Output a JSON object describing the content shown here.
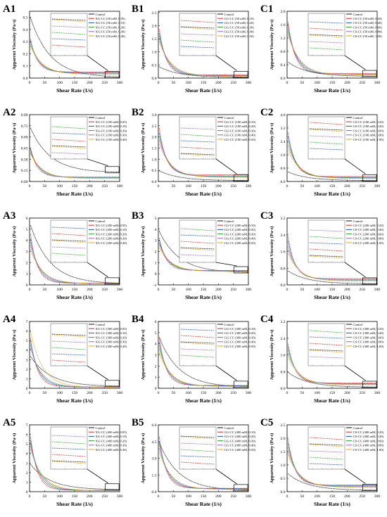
{
  "figure": {
    "xlabel": "Shear Rate (1/s)",
    "ylabel": "Apparent Viscosity (Pa·s)"
  },
  "colors": {
    "control": "#111111",
    "series": [
      "#d62728",
      "#1f4fc4",
      "#2ca02c",
      "#9467bd",
      "#e8a317",
      "#17becf"
    ],
    "box": "#000000"
  },
  "chart_data": [
    {
      "id": "A1",
      "type": "line",
      "xlabel": "Shear Rate (1/s)",
      "ylabel": "Apparent Viscosity (Pa·s)",
      "xlim": [
        0,
        300
      ],
      "xticks": [
        "0",
        "50",
        "100",
        "150",
        "200",
        "250",
        "300"
      ],
      "ylim": [
        0,
        0.55
      ],
      "yticks": [
        "0.0",
        "0.1",
        "0.2",
        "0.3",
        "0.4",
        "0.5"
      ],
      "legend": [
        "Control",
        "XG-CC (50 mM, 0.05)",
        "XG-CC (50 mM, 0.10)",
        "XG-CC (50 mM, 0.20)",
        "XG-CC (50 mM, 0.30)",
        "XG-CC (50 mM, 0.40)"
      ],
      "start": [
        0.52,
        0.36,
        0.34,
        0.32,
        0.3,
        0.28
      ],
      "end": [
        0.005,
        0.05,
        0.045,
        0.04,
        0.035,
        0.03
      ]
    },
    {
      "id": "B1",
      "type": "line",
      "xlabel": "Shear Rate (1/s)",
      "ylabel": "Apparent Viscosity (Pa·s)",
      "xlim": [
        0,
        300
      ],
      "xticks": [
        "0",
        "50",
        "100",
        "150",
        "200",
        "250",
        "300"
      ],
      "ylim": [
        0,
        2.55
      ],
      "yticks": [
        "0.0",
        "0.5",
        "1.0",
        "1.5",
        "2.0",
        "2.5"
      ],
      "legend": [
        "Control",
        "GG-CC (50 mM, 0.10)",
        "GG-CC (50 mM, 0.20)",
        "GG-CC (50 mM, 0.30)",
        "GG-CC (50 mM, 0.40)",
        "GG-CC (50 mM, 0.50)"
      ],
      "start": [
        0.45,
        2.1,
        1.9,
        1.75,
        1.6,
        1.5
      ],
      "end": [
        0.03,
        0.12,
        0.1,
        0.09,
        0.08,
        0.07
      ]
    },
    {
      "id": "C1",
      "type": "line",
      "xlabel": "Shear Rate (1/s)",
      "ylabel": "Apparent Viscosity (Pa·s)",
      "xlim": [
        0,
        300
      ],
      "xticks": [
        "0",
        "50",
        "100",
        "150",
        "200",
        "250",
        "300"
      ],
      "ylim": [
        0,
        2.0
      ],
      "yticks": [
        "0.0",
        "0.4",
        "0.8",
        "1.2",
        "1.6",
        "2.0"
      ],
      "legend": [
        "Control",
        "CS-CC (50 mM, 0.20)",
        "CS-CC (50 mM, 0.40)",
        "CS-CC (50 mM, 0.60)",
        "CS-CC (50 mM, 0.80)",
        "CS-CC (50 mM, 1.00)"
      ],
      "start": [
        0.5,
        1.9,
        1.75,
        1.6,
        1.5,
        1.4
      ],
      "end": [
        0.05,
        0.14,
        0.12,
        0.11,
        0.1,
        0.09
      ]
    },
    {
      "id": "A2",
      "type": "line",
      "xlabel": "Shear Rate (1/s)",
      "ylabel": "Apparent Viscosity (Pa·s)",
      "xlim": [
        0,
        300
      ],
      "xticks": [
        "0",
        "50",
        "100",
        "150",
        "200",
        "250",
        "300"
      ],
      "ylim": [
        0,
        0.9
      ],
      "yticks": [
        "0.00",
        "0.15",
        "0.30",
        "0.45",
        "0.60",
        "0.75",
        "0.90"
      ],
      "legend": [
        "Control",
        "XG-CC (100 mM, 0.05)",
        "XG-CC (100 mM, 0.10)",
        "XG-CC (100 mM, 0.20)",
        "XG-CC (100 mM, 0.30)",
        "XG-CC (100 mM, 0.40)"
      ],
      "start": [
        0.75,
        0.5,
        0.48,
        0.45,
        0.42,
        0.4
      ],
      "end": [
        0.12,
        0.06,
        0.055,
        0.05,
        0.045,
        0.04
      ]
    },
    {
      "id": "B2",
      "type": "line",
      "xlabel": "Shear Rate (1/s)",
      "ylabel": "Apparent Viscosity (Pa·s)",
      "xlim": [
        0,
        300
      ],
      "xticks": [
        "0",
        "50",
        "100",
        "150",
        "200",
        "250",
        "300"
      ],
      "ylim": [
        0,
        3.0
      ],
      "yticks": [
        "0.0",
        "0.5",
        "1.0",
        "1.5",
        "2.0",
        "2.5",
        "3.0"
      ],
      "legend": [
        "Control",
        "GG-CC (100 mM, 0.10)",
        "GG-CC (100 mM, 0.20)",
        "GG-CC (100 mM, 0.30)",
        "GG-CC (100 mM, 0.40)",
        "GG-CC (100 mM, 0.50)"
      ],
      "start": [
        0.5,
        2.7,
        2.4,
        2.2,
        2.0,
        1.8
      ],
      "end": [
        0.04,
        0.3,
        0.25,
        0.22,
        0.2,
        0.18
      ]
    },
    {
      "id": "C2",
      "type": "line",
      "xlabel": "Shear Rate (1/s)",
      "ylabel": "Apparent Viscosity (Pa·s)",
      "xlim": [
        0,
        300
      ],
      "xticks": [
        "0",
        "50",
        "100",
        "150",
        "200",
        "250",
        "300"
      ],
      "ylim": [
        0,
        4.0
      ],
      "yticks": [
        "0.0",
        "0.8",
        "1.6",
        "2.4",
        "3.2",
        "4.0"
      ],
      "legend": [
        "Control",
        "CS-CC (100 mM, 0.20)",
        "CS-CC (100 mM, 0.40)",
        "CS-CC (100 mM, 0.60)",
        "CS-CC (100 mM, 0.80)",
        "CS-CC (100 mM, 1.00)"
      ],
      "start": [
        0.6,
        3.3,
        3.0,
        2.6,
        2.3,
        2.0
      ],
      "end": [
        0.05,
        0.3,
        0.25,
        0.22,
        0.2,
        0.18
      ]
    },
    {
      "id": "A3",
      "type": "line",
      "xlabel": "Shear Rate (1/s)",
      "ylabel": "Apparent Viscosity (Pa·s)",
      "xlim": [
        0,
        300
      ],
      "xticks": [
        "0",
        "50",
        "100",
        "150",
        "200",
        "250",
        "300"
      ],
      "ylim": [
        0,
        6
      ],
      "yticks": [
        "0",
        "1",
        "2",
        "3",
        "4",
        "5",
        "6"
      ],
      "legend": [
        "Control",
        "XG-CC (200 mM, 0.05)",
        "XG-CC (200 mM, 0.10)",
        "XG-CC (200 mM, 0.20)",
        "XG-CC (200 mM, 0.30)",
        "XG-CC (200 mM, 0.40)"
      ],
      "start": [
        5.6,
        5.2,
        4.6,
        4.2,
        3.8,
        3.4
      ],
      "end": [
        0.1,
        0.15,
        0.14,
        0.13,
        0.12,
        0.11
      ]
    },
    {
      "id": "B3",
      "type": "line",
      "xlabel": "Shear Rate (1/s)",
      "ylabel": "Apparent Viscosity (Pa·s)",
      "xlim": [
        0,
        300
      ],
      "xticks": [
        "0",
        "50",
        "100",
        "150",
        "200",
        "250",
        "300"
      ],
      "ylim": [
        -1,
        5
      ],
      "yticks": [
        "-1",
        "0",
        "1",
        "2",
        "3",
        "4",
        "5"
      ],
      "legend": [
        "Control",
        "GG-CC (200 mM, 0.10)",
        "GG-CC (200 mM, 0.20)",
        "GG-CC (200 mM, 0.30)",
        "GG-CC (200 mM, 0.40)",
        "GG-CC (200 mM, 0.50)"
      ],
      "start": [
        4.0,
        3.6,
        3.3,
        3.0,
        2.8,
        2.5
      ],
      "end": [
        0.1,
        0.3,
        0.28,
        0.25,
        0.23,
        0.2
      ]
    },
    {
      "id": "C3",
      "type": "line",
      "xlabel": "Shear Rate (1/s)",
      "ylabel": "Apparent Viscosity (Pa·s)",
      "xlim": [
        0,
        300
      ],
      "xticks": [
        "0",
        "50",
        "100",
        "150",
        "200",
        "250",
        "300"
      ],
      "ylim": [
        0,
        3.2
      ],
      "yticks": [
        "0.0",
        "0.8",
        "1.6",
        "2.4",
        "3.2"
      ],
      "legend": [
        "Control",
        "CS-CC (200 mM, 0.20)",
        "CS-CC (200 mM, 0.40)",
        "CS-CC (200 mM, 0.60)",
        "CS-CC (200 mM, 0.80)",
        "CS-CC (200 mM, 1.00)"
      ],
      "start": [
        0.7,
        2.6,
        2.3,
        2.0,
        1.8,
        1.6
      ],
      "end": [
        0.05,
        0.3,
        0.26,
        0.23,
        0.2,
        0.18
      ]
    },
    {
      "id": "A4",
      "type": "line",
      "xlabel": "Shear Rate (1/s)",
      "ylabel": "Apparent Viscosity (Pa·s)",
      "xlim": [
        0,
        300
      ],
      "xticks": [
        "0",
        "50",
        "100",
        "150",
        "200",
        "250",
        "300"
      ],
      "ylim": [
        0,
        7
      ],
      "yticks": [
        "0",
        "1",
        "2",
        "3",
        "4",
        "5",
        "6",
        "7"
      ],
      "legend": [
        "Control",
        "XG-CC (300 mM, 0.05)",
        "XG-CC (300 mM, 0.10)",
        "XG-CC (300 mM, 0.20)",
        "XG-CC (300 mM, 0.30)",
        "XG-CC (300 mM, 0.40)"
      ],
      "start": [
        3.5,
        6.0,
        5.5,
        5.0,
        4.6,
        6.4
      ],
      "end": [
        0.2,
        0.15,
        0.14,
        0.13,
        0.12,
        0.11
      ]
    },
    {
      "id": "B4",
      "type": "line",
      "xlabel": "Shear Rate (1/s)",
      "ylabel": "Apparent Viscosity (Pa·s)",
      "xlim": [
        0,
        300
      ],
      "xticks": [
        "0",
        "50",
        "100",
        "150",
        "200",
        "250",
        "300"
      ],
      "ylim": [
        0,
        6
      ],
      "yticks": [
        "0",
        "1",
        "2",
        "3",
        "4",
        "5",
        "6"
      ],
      "legend": [
        "Control",
        "GG-CC (300 mM, 0.10)",
        "GG-CC (300 mM, 0.20)",
        "GG-CC (300 mM, 0.30)",
        "GG-CC (300 mM, 0.40)",
        "GG-CC (300 mM, 0.50)"
      ],
      "start": [
        4.8,
        5.2,
        4.6,
        4.2,
        3.8,
        3.4
      ],
      "end": [
        0.1,
        0.25,
        0.23,
        0.2,
        0.18,
        0.16
      ]
    },
    {
      "id": "C4",
      "type": "line",
      "xlabel": "Shear Rate (1/s)",
      "ylabel": "Apparent Viscosity (Pa·s)",
      "xlim": [
        0,
        300
      ],
      "xticks": [
        "0",
        "50",
        "100",
        "150",
        "200",
        "250",
        "300"
      ],
      "ylim": [
        0,
        3.2
      ],
      "yticks": [
        "0.0",
        "0.8",
        "1.6",
        "2.4",
        "3.2"
      ],
      "legend": [
        "Control",
        "CS-CC (300 mM, 0.20)",
        "CS-CC (300 mM, 0.40)",
        "CS-CC (300 mM, 0.60)",
        "CS-CC (300 mM, 0.80)",
        "CS-CC (300 mM, 1.00)"
      ],
      "start": [
        0.8,
        2.4,
        2.2,
        2.0,
        1.8,
        1.6
      ],
      "end": [
        0.05,
        0.25,
        0.22,
        0.2,
        0.18,
        0.16
      ]
    },
    {
      "id": "A5",
      "type": "line",
      "xlabel": "Shear Rate (1/s)",
      "ylabel": "Apparent Viscosity (Pa·s)",
      "xlim": [
        0,
        300
      ],
      "xticks": [
        "0",
        "50",
        "100",
        "150",
        "200",
        "250",
        "300"
      ],
      "ylim": [
        0,
        7
      ],
      "yticks": [
        "0",
        "1",
        "2",
        "3",
        "4",
        "5",
        "6",
        "7"
      ],
      "legend": [
        "Control",
        "XG-CC (400 mM, 0.05)",
        "XG-CC (400 mM, 0.10)",
        "XG-CC (400 mM, 0.20)",
        "XG-CC (400 mM, 0.30)",
        "XG-CC (400 mM, 0.40)"
      ],
      "start": [
        3.0,
        6.6,
        6.0,
        5.6,
        5.2,
        4.8
      ],
      "end": [
        0.2,
        0.15,
        0.14,
        0.13,
        0.12,
        0.11
      ]
    },
    {
      "id": "B5",
      "type": "line",
      "xlabel": "Shear Rate (1/s)",
      "ylabel": "Apparent Viscosity (Pa·s)",
      "xlim": [
        0,
        300
      ],
      "xticks": [
        "0",
        "50",
        "100",
        "150",
        "200",
        "250",
        "300"
      ],
      "ylim": [
        0,
        6.0
      ],
      "yticks": [
        "0.0",
        "1.5",
        "3.0",
        "4.5",
        "6.0"
      ],
      "legend": [
        "Control",
        "GG-CC (400 mM, 0.10)",
        "GG-CC (400 mM, 0.20)",
        "GG-CC (400 mM, 0.30)",
        "GG-CC (400 mM, 0.40)",
        "GG-CC (400 mM, 0.50)"
      ],
      "start": [
        4.6,
        5.6,
        5.0,
        4.6,
        4.2,
        3.8
      ],
      "end": [
        0.1,
        0.3,
        0.27,
        0.24,
        0.22,
        0.2
      ]
    },
    {
      "id": "C5",
      "type": "line",
      "xlabel": "Shear Rate (1/s)",
      "ylabel": "Apparent Viscosity (Pa·s)",
      "xlim": [
        0,
        300
      ],
      "xticks": [
        "0",
        "50",
        "100",
        "150",
        "200",
        "250",
        "300"
      ],
      "ylim": [
        0,
        2.5
      ],
      "yticks": [
        "0.0",
        "0.5",
        "1.0",
        "1.5",
        "2.0",
        "2.5"
      ],
      "legend": [
        "Control",
        "CS-CC (400 mM, 0.20)",
        "CS-CC (400 mM, 0.40)",
        "CS-CC (400 mM, 0.60)",
        "CS-CC (400 mM, 0.80)",
        "CS-CC (400 mM, 1.00)"
      ],
      "start": [
        0.7,
        2.2,
        2.0,
        1.8,
        1.6,
        1.5
      ],
      "end": [
        0.05,
        0.25,
        0.22,
        0.2,
        0.18,
        0.16
      ]
    }
  ]
}
